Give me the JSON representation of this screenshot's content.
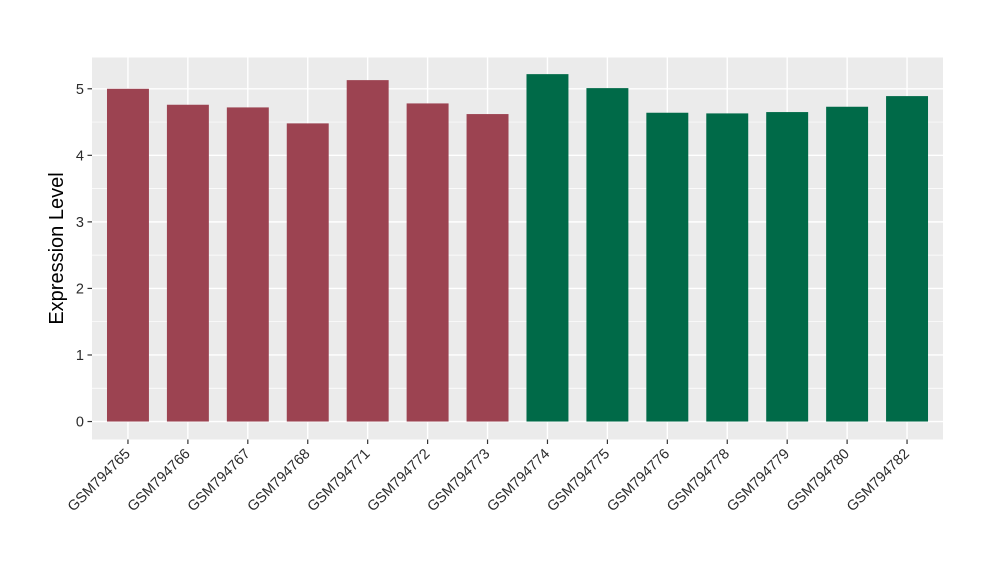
{
  "figure": {
    "background": "#ffffff"
  },
  "chart_data": {
    "type": "bar",
    "title": "",
    "xlabel": "",
    "ylabel": "Expression Level",
    "categories": [
      "GSM794765",
      "GSM794766",
      "GSM794767",
      "GSM794768",
      "GSM794771",
      "GSM794772",
      "GSM794773",
      "GSM794774",
      "GSM794775",
      "GSM794776",
      "GSM794778",
      "GSM794779",
      "GSM794780",
      "GSM794782"
    ],
    "values": [
      5.0,
      4.76,
      4.72,
      4.48,
      5.13,
      4.78,
      4.62,
      5.22,
      5.01,
      4.64,
      4.63,
      4.65,
      4.73,
      4.89
    ],
    "groups": [
      0,
      0,
      0,
      0,
      0,
      0,
      0,
      1,
      1,
      1,
      1,
      1,
      1,
      1
    ],
    "group_colors": [
      "#9C4351",
      "#006A48"
    ],
    "yticks": [
      0,
      1,
      2,
      3,
      4,
      5
    ],
    "yticks_minor": [
      0.5,
      1.5,
      2.5,
      3.5,
      4.5
    ],
    "ylim": [
      -0.27,
      5.47
    ],
    "bar_width_ratio": 0.7,
    "panel_background": "#EBEBEB",
    "grid_color": "#FFFFFF",
    "tick_color": "#333333",
    "tick_label_color": "#2b2b2b",
    "x_tick_label_angle": -45,
    "legend": "none",
    "grid": "on"
  }
}
